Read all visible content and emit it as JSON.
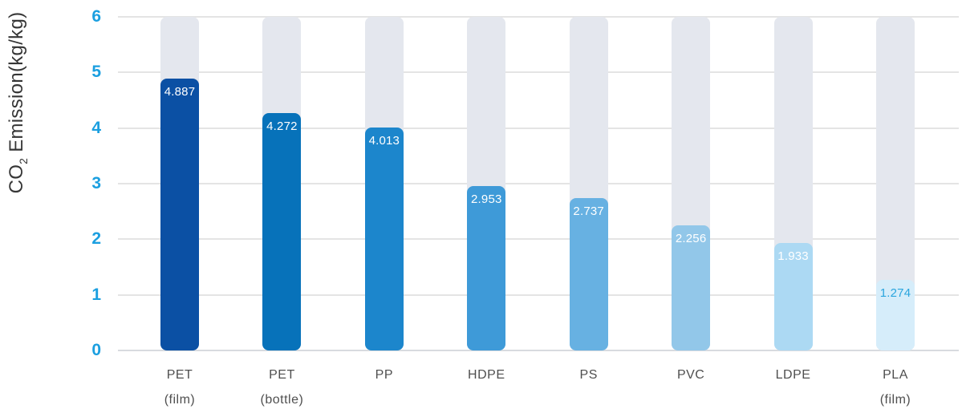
{
  "chart_data": {
    "type": "bar",
    "title": "",
    "ylabel_text": "CO2 Emission(kg/kg)",
    "ylabel_prefix": "CO",
    "ylabel_sub": "2",
    "ylabel_suffix": " Emission(kg/kg)",
    "xlabel": "",
    "ylim": [
      0,
      6
    ],
    "yticks": [
      0,
      1,
      2,
      3,
      4,
      5,
      6
    ],
    "grid": true,
    "legend": false,
    "categories": [
      "PET (film)",
      "PET (bottle)",
      "PP",
      "HDPE",
      "PS",
      "PVC",
      "LDPE",
      "PLA (film)"
    ],
    "category_lines": [
      [
        "PET",
        "(film)"
      ],
      [
        "PET",
        "(bottle)"
      ],
      [
        "PP"
      ],
      [
        "HDPE"
      ],
      [
        "PS"
      ],
      [
        "PVC"
      ],
      [
        "LDPE"
      ],
      [
        "PLA",
        "(film)"
      ]
    ],
    "values": [
      4.887,
      4.272,
      4.013,
      2.953,
      2.737,
      2.256,
      1.933,
      1.274
    ],
    "value_labels": [
      "4.887",
      "4.272",
      "4.013",
      "2.953",
      "2.737",
      "2.256",
      "1.933",
      "1.274"
    ],
    "bar_colors": [
      "#0b50a4",
      "#0772ba",
      "#1c86cc",
      "#3e9ad8",
      "#67b1e2",
      "#92c7e9",
      "#acd9f3",
      "#d6edfa"
    ],
    "value_label_colors": [
      "#ffffff",
      "#ffffff",
      "#ffffff",
      "#ffffff",
      "#ffffff",
      "#ffffff",
      "#ffffff",
      "#2aa5de"
    ],
    "colors": {
      "track": "#e4e7ee",
      "gridline": "#e4e4e4",
      "baseline": "#d8dbdf",
      "tick_label": "#1b9fe0",
      "category_label": "#4f4f4f",
      "axis_title": "#363636"
    }
  }
}
